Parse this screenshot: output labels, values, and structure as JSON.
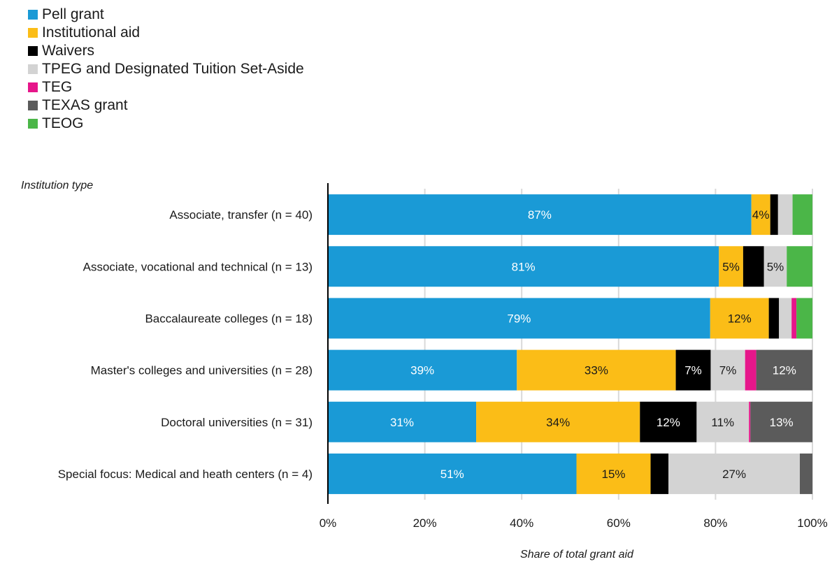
{
  "chart_data": {
    "type": "bar",
    "orientation": "horizontal",
    "stacked": true,
    "title": "",
    "ylabel": "Institution type",
    "xlabel": "Share of total grant aid",
    "xlim": [
      0,
      100
    ],
    "x_ticks": [
      "0%",
      "20%",
      "40%",
      "60%",
      "80%",
      "100%"
    ],
    "x_tick_values": [
      0,
      20,
      40,
      60,
      80,
      100
    ],
    "grid": "vertical",
    "legend_position": "top-left",
    "categories": [
      "Associate, transfer (n = 40)",
      "Associate, vocational and technical (n = 13)",
      "Baccalaureate colleges (n = 18)",
      "Master's colleges and universities (n = 28)",
      "Doctoral universities (n = 31)",
      "Special focus: Medical and heath centers (n = 4)"
    ],
    "series": [
      {
        "name": "Pell grant",
        "color": "#1a9ad6",
        "label_color": "#ffffff",
        "values": [
          87.4,
          80.7,
          78.9,
          39.0,
          30.6,
          51.3
        ],
        "labels": [
          "87%",
          "81%",
          "79%",
          "39%",
          "31%",
          "51%"
        ]
      },
      {
        "name": "Institutional aid",
        "color": "#fbbd17",
        "label_color": "#1a1a1a",
        "values": [
          3.9,
          5.0,
          12.1,
          32.8,
          33.8,
          15.3
        ],
        "labels": [
          "4%",
          "5%",
          "12%",
          "33%",
          "34%",
          "15%"
        ]
      },
      {
        "name": "Waivers",
        "color": "#000000",
        "label_color": "#ffffff",
        "values": [
          1.6,
          4.3,
          2.1,
          7.2,
          11.7,
          3.7
        ],
        "labels": [
          "",
          "",
          "",
          "7%",
          "12%",
          ""
        ]
      },
      {
        "name": "TPEG and Designated Tuition Set-Aside",
        "color": "#d3d3d3",
        "label_color": "#1a1a1a",
        "values": [
          3.0,
          4.7,
          2.6,
          7.1,
          10.8,
          27.1
        ],
        "labels": [
          "",
          "5%",
          "",
          "7%",
          "11%",
          "27%"
        ]
      },
      {
        "name": "TEG",
        "color": "#e6168a",
        "label_color": "#1a1a1a",
        "values": [
          0.0,
          0.0,
          1.0,
          2.3,
          0.3,
          0.0
        ],
        "labels": [
          "",
          "",
          "",
          "",
          "",
          ""
        ]
      },
      {
        "name": "TEXAS grant",
        "color": "#5b5b5b",
        "label_color": "#ffffff",
        "values": [
          0.0,
          0.0,
          0.0,
          11.6,
          12.8,
          2.6
        ],
        "labels": [
          "",
          "",
          "",
          "12%",
          "13%",
          ""
        ]
      },
      {
        "name": "TEOG",
        "color": "#4bb648",
        "label_color": "#1a1a1a",
        "values": [
          4.1,
          5.3,
          3.3,
          0.0,
          0.0,
          0.0
        ],
        "labels": [
          "",
          "",
          "",
          "",
          "",
          ""
        ]
      }
    ]
  }
}
